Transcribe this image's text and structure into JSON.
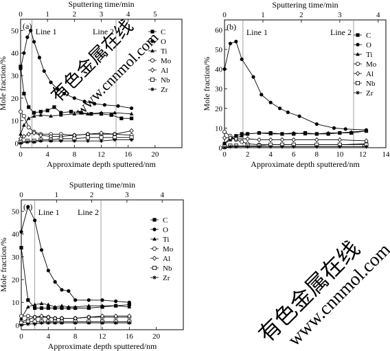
{
  "watermark": {
    "chinese": "有色金属在线",
    "url": "www.cnnmol.com"
  },
  "chart_data": [
    {
      "type": "line",
      "panel_label": "(a)",
      "xlabel": "Approximate depth sputtered/nm",
      "ylabel": "Mole fraction/%",
      "top_axis_label": "Sputtering time/min",
      "xlim": [
        0,
        24
      ],
      "ylim": [
        -2,
        55
      ],
      "top_xlim": [
        0,
        6
      ],
      "xticks": [
        0,
        4,
        8,
        12,
        16,
        20
      ],
      "yticks": [
        0,
        10,
        20,
        30,
        40,
        50
      ],
      "top_ticks": [
        0,
        1,
        2,
        3,
        4,
        5
      ],
      "ref_lines": [
        {
          "label": "Line 1",
          "x": 1.7
        },
        {
          "label": "Line 2",
          "x": 14.2
        }
      ],
      "series": [
        {
          "name": "C",
          "marker": "square-filled",
          "x": [
            0,
            0.5,
            1.2,
            2.0,
            3.0,
            4.0,
            5.0,
            6.0,
            7.5,
            9.0,
            10.5,
            12,
            13.5,
            15,
            16.5
          ],
          "y": [
            34,
            22,
            16,
            13.5,
            14,
            14.5,
            16,
            13.5,
            14,
            13.5,
            13,
            13,
            12.5,
            11,
            11
          ]
        },
        {
          "name": "O",
          "marker": "circle-filled",
          "x": [
            0,
            0.5,
            1.0,
            1.5,
            2.0,
            2.8,
            3.5,
            4.5,
            5.5,
            6.5,
            8.0,
            9.5,
            11,
            12.5,
            14.5,
            16.5
          ],
          "y": [
            33,
            40,
            47,
            50,
            45,
            38,
            32,
            27,
            24,
            22,
            20,
            18.5,
            17.5,
            17,
            16.5,
            15.5
          ]
        },
        {
          "name": "Ti",
          "marker": "triangle-filled",
          "x": [
            0,
            0.5,
            1.2,
            2.0,
            3.0,
            4.5,
            6,
            8,
            10,
            12,
            14,
            16.5
          ],
          "y": [
            4,
            8,
            11,
            12,
            12.5,
            12,
            12.5,
            13,
            13,
            13.5,
            13.5,
            13
          ]
        },
        {
          "name": "Mo",
          "marker": "circle-open",
          "x": [
            0,
            0.5,
            1.2,
            2.0,
            3.0,
            4.5,
            6,
            8,
            10,
            12,
            14,
            16.5
          ],
          "y": [
            14,
            12,
            7,
            5,
            4,
            4,
            4,
            3.5,
            4,
            4,
            4,
            3.5
          ]
        },
        {
          "name": "Al",
          "marker": "diamond-open",
          "x": [
            0,
            0.5,
            1.2,
            2.0,
            3.0,
            4.5,
            6,
            8,
            10,
            12,
            14,
            16.5
          ],
          "y": [
            2,
            3,
            4,
            4.5,
            3.5,
            3,
            3,
            3.5,
            4,
            4.5,
            4,
            5.5
          ]
        },
        {
          "name": "Nb",
          "marker": "square-open",
          "x": [
            0,
            1,
            2,
            3,
            4.5,
            6,
            8,
            10,
            12,
            14,
            16.5
          ],
          "y": [
            0.5,
            1,
            1,
            1.5,
            1.5,
            2,
            2,
            2.5,
            2.5,
            2.5,
            2.5
          ]
        },
        {
          "name": "Zr",
          "marker": "star",
          "x": [
            0,
            1,
            2,
            3,
            4.5,
            6,
            8,
            10,
            12,
            14,
            16.5
          ],
          "y": [
            0,
            0.5,
            0.5,
            1,
            1,
            1,
            1,
            1,
            1,
            1.5,
            1.5
          ]
        }
      ]
    },
    {
      "type": "line",
      "panel_label": "(b)",
      "xlabel": "Approximate depth sputtered/nm",
      "ylabel": "Mole fraction/%",
      "top_axis_label": "Sputtering time/min",
      "xlim": [
        0,
        14
      ],
      "ylim": [
        0,
        65
      ],
      "top_xlim": [
        0,
        4.2
      ],
      "xticks": [
        0,
        2,
        4,
        6,
        8,
        10,
        12,
        14
      ],
      "yticks": [
        0,
        10,
        20,
        30,
        40,
        50,
        60
      ],
      "top_ticks": [
        0,
        1,
        2,
        3,
        4
      ],
      "ref_lines": [
        {
          "label": "Line 1",
          "x": 1.6
        },
        {
          "label": "Line 2",
          "x": 11.2
        }
      ],
      "series": [
        {
          "name": "C",
          "marker": "square-filled",
          "x": [
            0,
            0.5,
            1,
            1.5,
            2,
            3,
            4,
            5,
            6,
            7,
            8,
            9,
            10,
            11,
            12.3
          ],
          "y": [
            2,
            5,
            6,
            7,
            7,
            7.5,
            7.5,
            7,
            7,
            7.5,
            7,
            7,
            7.5,
            7.5,
            8.5
          ]
        },
        {
          "name": "O",
          "marker": "circle-filled",
          "x": [
            0,
            0.5,
            1,
            1.5,
            2.5,
            3.2,
            4,
            4.8,
            5.5,
            6.5,
            8,
            9.5,
            10.5,
            12.3
          ],
          "y": [
            40,
            53,
            54,
            45,
            36,
            27,
            23,
            20,
            18,
            16,
            12,
            10,
            9.5,
            9
          ]
        },
        {
          "name": "Ti",
          "marker": "triangle-filled",
          "x": [
            0,
            0.5,
            1,
            1.5,
            2,
            3,
            4,
            5,
            6,
            7,
            8,
            9,
            10,
            11,
            12.3
          ],
          "y": [
            2,
            4,
            5,
            6,
            7,
            7.5,
            7,
            7,
            7.5,
            7,
            7,
            7.5,
            7.5,
            8,
            8.5
          ]
        },
        {
          "name": "Mo",
          "marker": "circle-open",
          "x": [
            0,
            0.5,
            1,
            1.5,
            2,
            3,
            4,
            5,
            6,
            8,
            10,
            12.3
          ],
          "y": [
            8,
            6,
            4,
            3,
            2,
            1.5,
            1.5,
            1.5,
            1.5,
            1.5,
            1.5,
            2
          ]
        },
        {
          "name": "Al",
          "marker": "diamond-open",
          "x": [
            0,
            0.5,
            1,
            2,
            3,
            4,
            5,
            6,
            8,
            10,
            12.3
          ],
          "y": [
            5,
            5,
            4.5,
            4.5,
            4,
            4,
            4,
            4,
            4,
            4,
            3.5
          ]
        },
        {
          "name": "Nb",
          "marker": "square-open",
          "x": [
            0,
            0.5,
            1,
            2,
            3,
            4,
            5,
            6,
            8,
            10,
            12.3
          ],
          "y": [
            0.5,
            1,
            1,
            1,
            1,
            1.5,
            1.5,
            1.5,
            1.5,
            1.5,
            1.5
          ]
        },
        {
          "name": "Zr",
          "marker": "star",
          "x": [
            0,
            0.5,
            1,
            2,
            3,
            4,
            5,
            6,
            8,
            10,
            12.3
          ],
          "y": [
            0,
            0.5,
            0.5,
            0.5,
            0.5,
            0.5,
            0.5,
            0.5,
            0.5,
            0.5,
            0.5
          ]
        }
      ]
    },
    {
      "type": "line",
      "panel_label": "(c)",
      "xlabel": "Approximate depth sputtered/nm",
      "ylabel": "Mole fraction/%",
      "top_axis_label": "Sputtering time/min",
      "xlim": [
        0,
        24
      ],
      "ylim": [
        -2,
        55
      ],
      "top_xlim": [
        0,
        4.6
      ],
      "xticks": [
        0,
        4,
        8,
        12,
        16,
        20
      ],
      "yticks": [
        0,
        10,
        20,
        30,
        40,
        50
      ],
      "top_ticks": [
        0,
        1,
        2,
        3,
        4
      ],
      "ref_lines": [
        {
          "label": "Line 1",
          "x": 2.0
        },
        {
          "label": "Line 2",
          "x": 11.8
        }
      ],
      "series": [
        {
          "name": "C",
          "marker": "square-filled",
          "x": [
            0,
            1,
            2,
            3,
            4,
            5,
            6,
            7,
            8,
            10,
            12,
            14,
            16
          ],
          "y": [
            34,
            11,
            7.5,
            7.5,
            7.5,
            7.5,
            7.5,
            7.5,
            7.5,
            7.5,
            8,
            8.5,
            9
          ]
        },
        {
          "name": "O",
          "marker": "circle-filled",
          "x": [
            0,
            1,
            2,
            3,
            4,
            5,
            6,
            7,
            8,
            10,
            12,
            14,
            16
          ],
          "y": [
            41,
            52,
            46,
            33,
            24,
            19,
            15.5,
            15,
            11,
            11,
            11,
            10.5,
            10
          ]
        },
        {
          "name": "Ti",
          "marker": "triangle-filled",
          "x": [
            0,
            1,
            2,
            3,
            4,
            5,
            6,
            7,
            8,
            10,
            12,
            14,
            16
          ],
          "y": [
            3,
            8,
            9,
            9.5,
            9,
            8,
            8.5,
            8,
            8,
            8.5,
            8.5,
            8.5,
            8
          ]
        },
        {
          "name": "Mo",
          "marker": "circle-open",
          "x": [
            0,
            1,
            2,
            3,
            4,
            5,
            6,
            8,
            10,
            12,
            14,
            16
          ],
          "y": [
            4,
            4,
            3.5,
            3.5,
            3.5,
            3,
            3,
            3,
            3.5,
            3.5,
            3.5,
            3.5
          ]
        },
        {
          "name": "Al",
          "marker": "diamond-open",
          "x": [
            0,
            1,
            2,
            3,
            4,
            5,
            6,
            8,
            10,
            12,
            14,
            16
          ],
          "y": [
            1.5,
            2.5,
            3.5,
            4,
            3.5,
            3,
            3,
            3,
            3.5,
            4,
            4,
            4
          ]
        },
        {
          "name": "Nb",
          "marker": "square-open",
          "x": [
            0,
            1,
            2,
            3,
            4,
            5,
            6,
            8,
            10,
            12,
            14,
            16
          ],
          "y": [
            1,
            1.5,
            1.5,
            1.5,
            1.5,
            1.5,
            1.5,
            1.5,
            1.5,
            1.5,
            1.5,
            1.5
          ]
        },
        {
          "name": "Zr",
          "marker": "star",
          "x": [
            0,
            1,
            2,
            3,
            4,
            5,
            6,
            8,
            10,
            12,
            14,
            16
          ],
          "y": [
            0,
            0.5,
            0.5,
            1,
            1,
            1,
            1,
            1,
            1,
            1,
            1,
            1
          ]
        }
      ]
    }
  ]
}
